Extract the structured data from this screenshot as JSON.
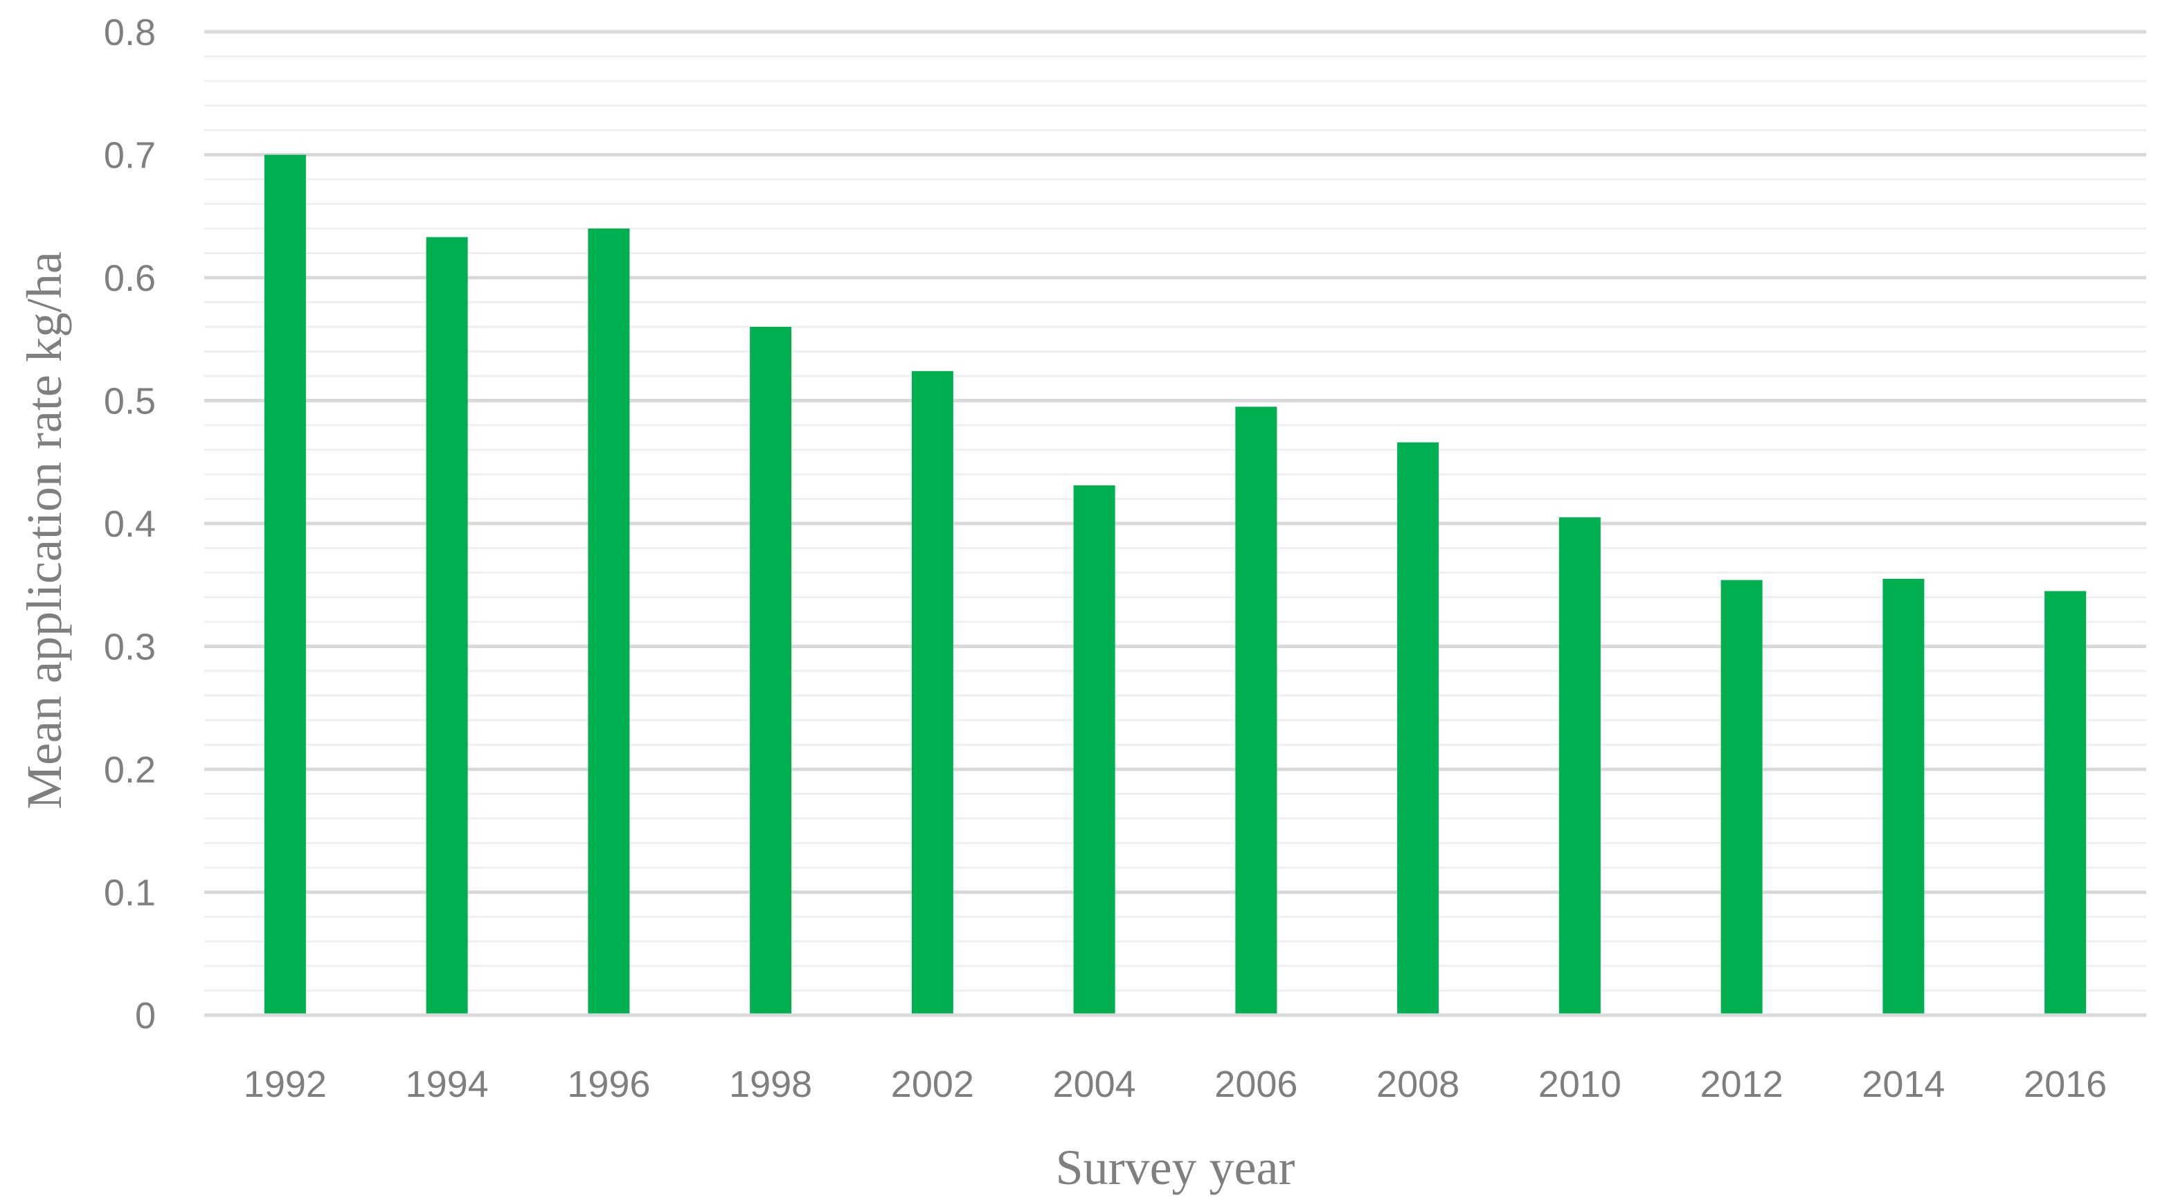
{
  "chart_data": {
    "type": "bar",
    "title": "",
    "xlabel": "Survey year",
    "ylabel": "Mean application rate kg/ha",
    "categories": [
      "1992",
      "1994",
      "1996",
      "1998",
      "2002",
      "2004",
      "2006",
      "2008",
      "2010",
      "2012",
      "2014",
      "2016"
    ],
    "values": [
      0.7,
      0.633,
      0.64,
      0.56,
      0.524,
      0.431,
      0.495,
      0.466,
      0.405,
      0.354,
      0.355,
      0.345
    ],
    "ylim": [
      0,
      0.8
    ],
    "yticks": [
      "0",
      "0.1",
      "0.2",
      "0.3",
      "0.4",
      "0.5",
      "0.6",
      "0.7",
      "0.8"
    ],
    "major_step": 0.1,
    "minor_step": 0.02,
    "grid": true,
    "legend": "none",
    "colors": {
      "bar": "#00b050",
      "major_grid": "#d9d9d9",
      "minor_grid": "#efefef",
      "axis_line": "#d9d9d9",
      "text": "#7f7f7f"
    }
  }
}
